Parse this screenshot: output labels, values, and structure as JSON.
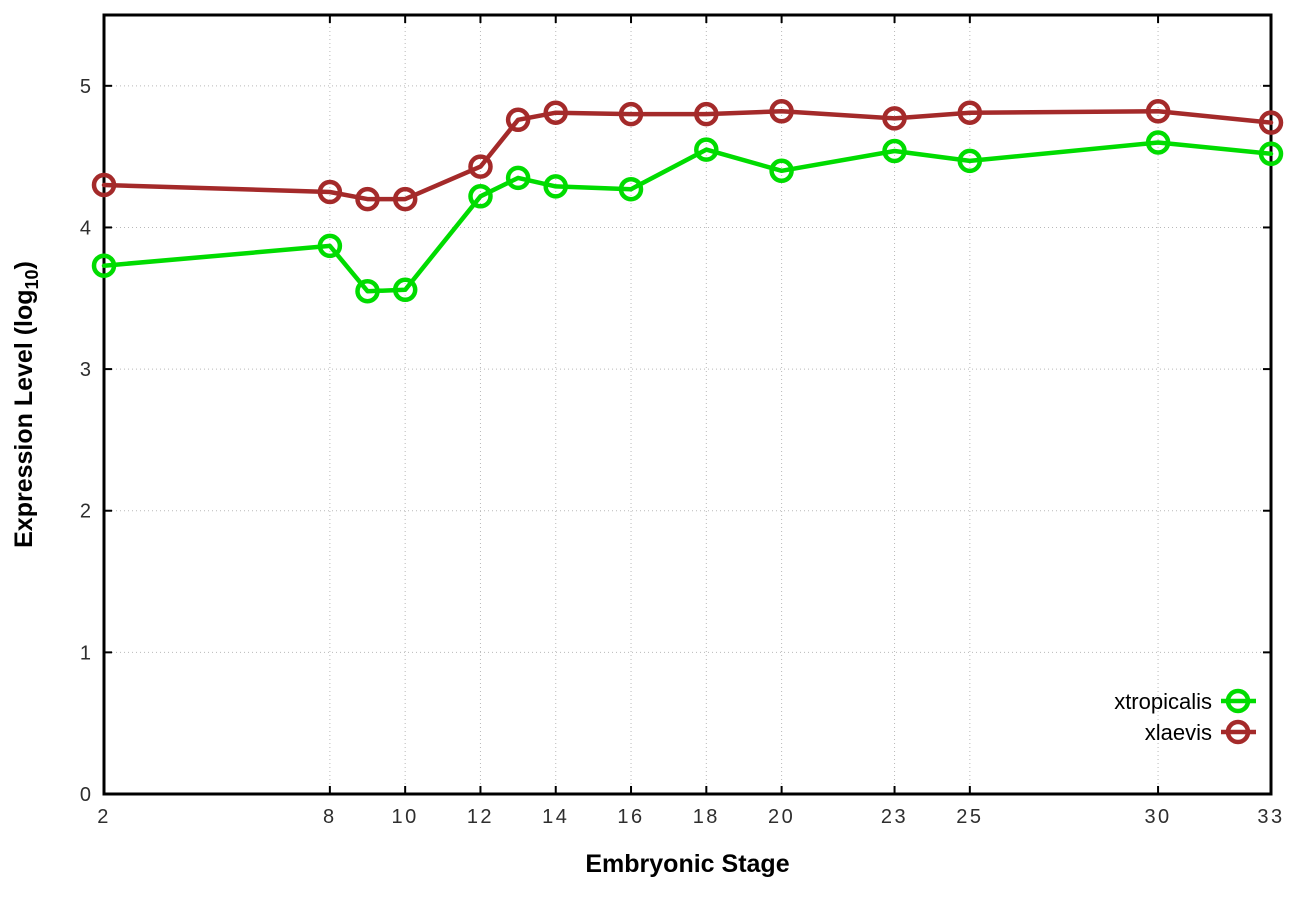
{
  "chart_data": {
    "type": "line",
    "title": "",
    "xlabel": "Embryonic Stage",
    "ylabel": "Expression Level (log10)",
    "ylabel_main": "Expression Level (log",
    "ylabel_sub": "10",
    "ylabel_end": ")",
    "x": [
      2,
      8,
      9,
      10,
      12,
      13,
      14,
      16,
      18,
      20,
      23,
      25,
      30,
      33
    ],
    "xticks": [
      2,
      8,
      10,
      12,
      14,
      16,
      18,
      20,
      23,
      25,
      30,
      33
    ],
    "yticks": [
      0,
      1,
      2,
      3,
      4,
      5
    ],
    "xlim": [
      2,
      33
    ],
    "ylim": [
      0,
      5.5
    ],
    "grid": true,
    "grid_color": "#b9b9b9",
    "border_color": "#000000",
    "legend_position": "inside-bottom-right",
    "series": [
      {
        "name": "xtropicalis",
        "color": "#00dc00",
        "values": [
          3.73,
          3.87,
          3.55,
          3.56,
          4.22,
          4.35,
          4.29,
          4.27,
          4.55,
          4.4,
          4.54,
          4.47,
          4.6,
          4.52
        ]
      },
      {
        "name": "xlaevis",
        "color": "#a42a2a",
        "values": [
          4.3,
          4.25,
          4.2,
          4.2,
          4.43,
          4.76,
          4.81,
          4.8,
          4.8,
          4.82,
          4.77,
          4.81,
          4.82,
          4.74
        ]
      }
    ]
  }
}
